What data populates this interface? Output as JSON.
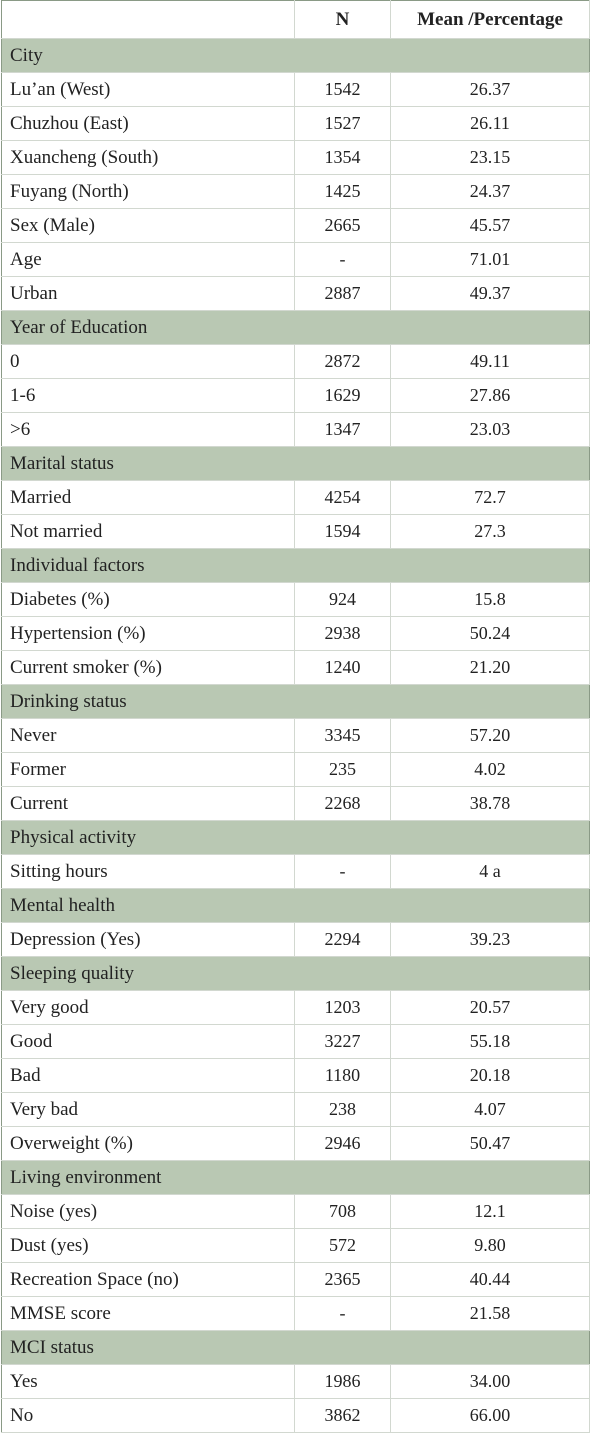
{
  "table": {
    "header": [
      "N",
      "Mean /Percentage"
    ],
    "rows": [
      [
        "City"
      ],
      [
        "Lu’an (West)",
        "1542",
        "26.37"
      ],
      [
        "Chuzhou (East)",
        "1527",
        "26.11"
      ],
      [
        "Xuancheng (South)",
        "1354",
        "23.15"
      ],
      [
        "Fuyang (North)",
        "1425",
        "24.37"
      ],
      [
        "Sex (Male)",
        "2665",
        "45.57"
      ],
      [
        "Age",
        "-",
        "71.01"
      ],
      [
        "Urban",
        "2887",
        "49.37"
      ],
      [
        "Year of Education"
      ],
      [
        "0",
        "2872",
        "49.11"
      ],
      [
        "1-6",
        "1629",
        "27.86"
      ],
      [
        ">6",
        "1347",
        "23.03"
      ],
      [
        "Marital status"
      ],
      [
        "Married",
        "4254",
        "72.7"
      ],
      [
        "Not married",
        "1594",
        "27.3"
      ],
      [
        "Individual factors"
      ],
      [
        "Diabetes (%)",
        "924",
        "15.8"
      ],
      [
        "Hypertension (%)",
        "2938",
        "50.24"
      ],
      [
        "Current smoker (%)",
        "1240",
        "21.20"
      ],
      [
        "Drinking status"
      ],
      [
        "Never",
        "3345",
        "57.20"
      ],
      [
        "Former",
        "235",
        "4.02"
      ],
      [
        "Current",
        "2268",
        "38.78"
      ],
      [
        "Physical activity"
      ],
      [
        "Sitting hours",
        "-",
        "4 a"
      ],
      [
        "Mental health"
      ],
      [
        "Depression (Yes)",
        "2294",
        "39.23"
      ],
      [
        "Sleeping quality"
      ],
      [
        "Very good",
        "1203",
        "20.57"
      ],
      [
        "Good",
        "3227",
        "55.18"
      ],
      [
        "Bad",
        "1180",
        "20.18"
      ],
      [
        "Very bad",
        "238",
        "4.07"
      ],
      [
        "Overweight (%)",
        "2946",
        "50.47"
      ],
      [
        "Living environment"
      ],
      [
        "Noise (yes)",
        "708",
        "12.1"
      ],
      [
        "Dust (yes)",
        "572",
        "9.80"
      ],
      [
        "Recreation Space (no)",
        "2365",
        "40.44"
      ],
      [
        "MMSE score",
        "-",
        "21.58"
      ],
      [
        "MCI status"
      ],
      [
        "Yes",
        "1986",
        "34.00"
      ],
      [
        "No",
        "3862",
        "66.00"
      ]
    ]
  }
}
